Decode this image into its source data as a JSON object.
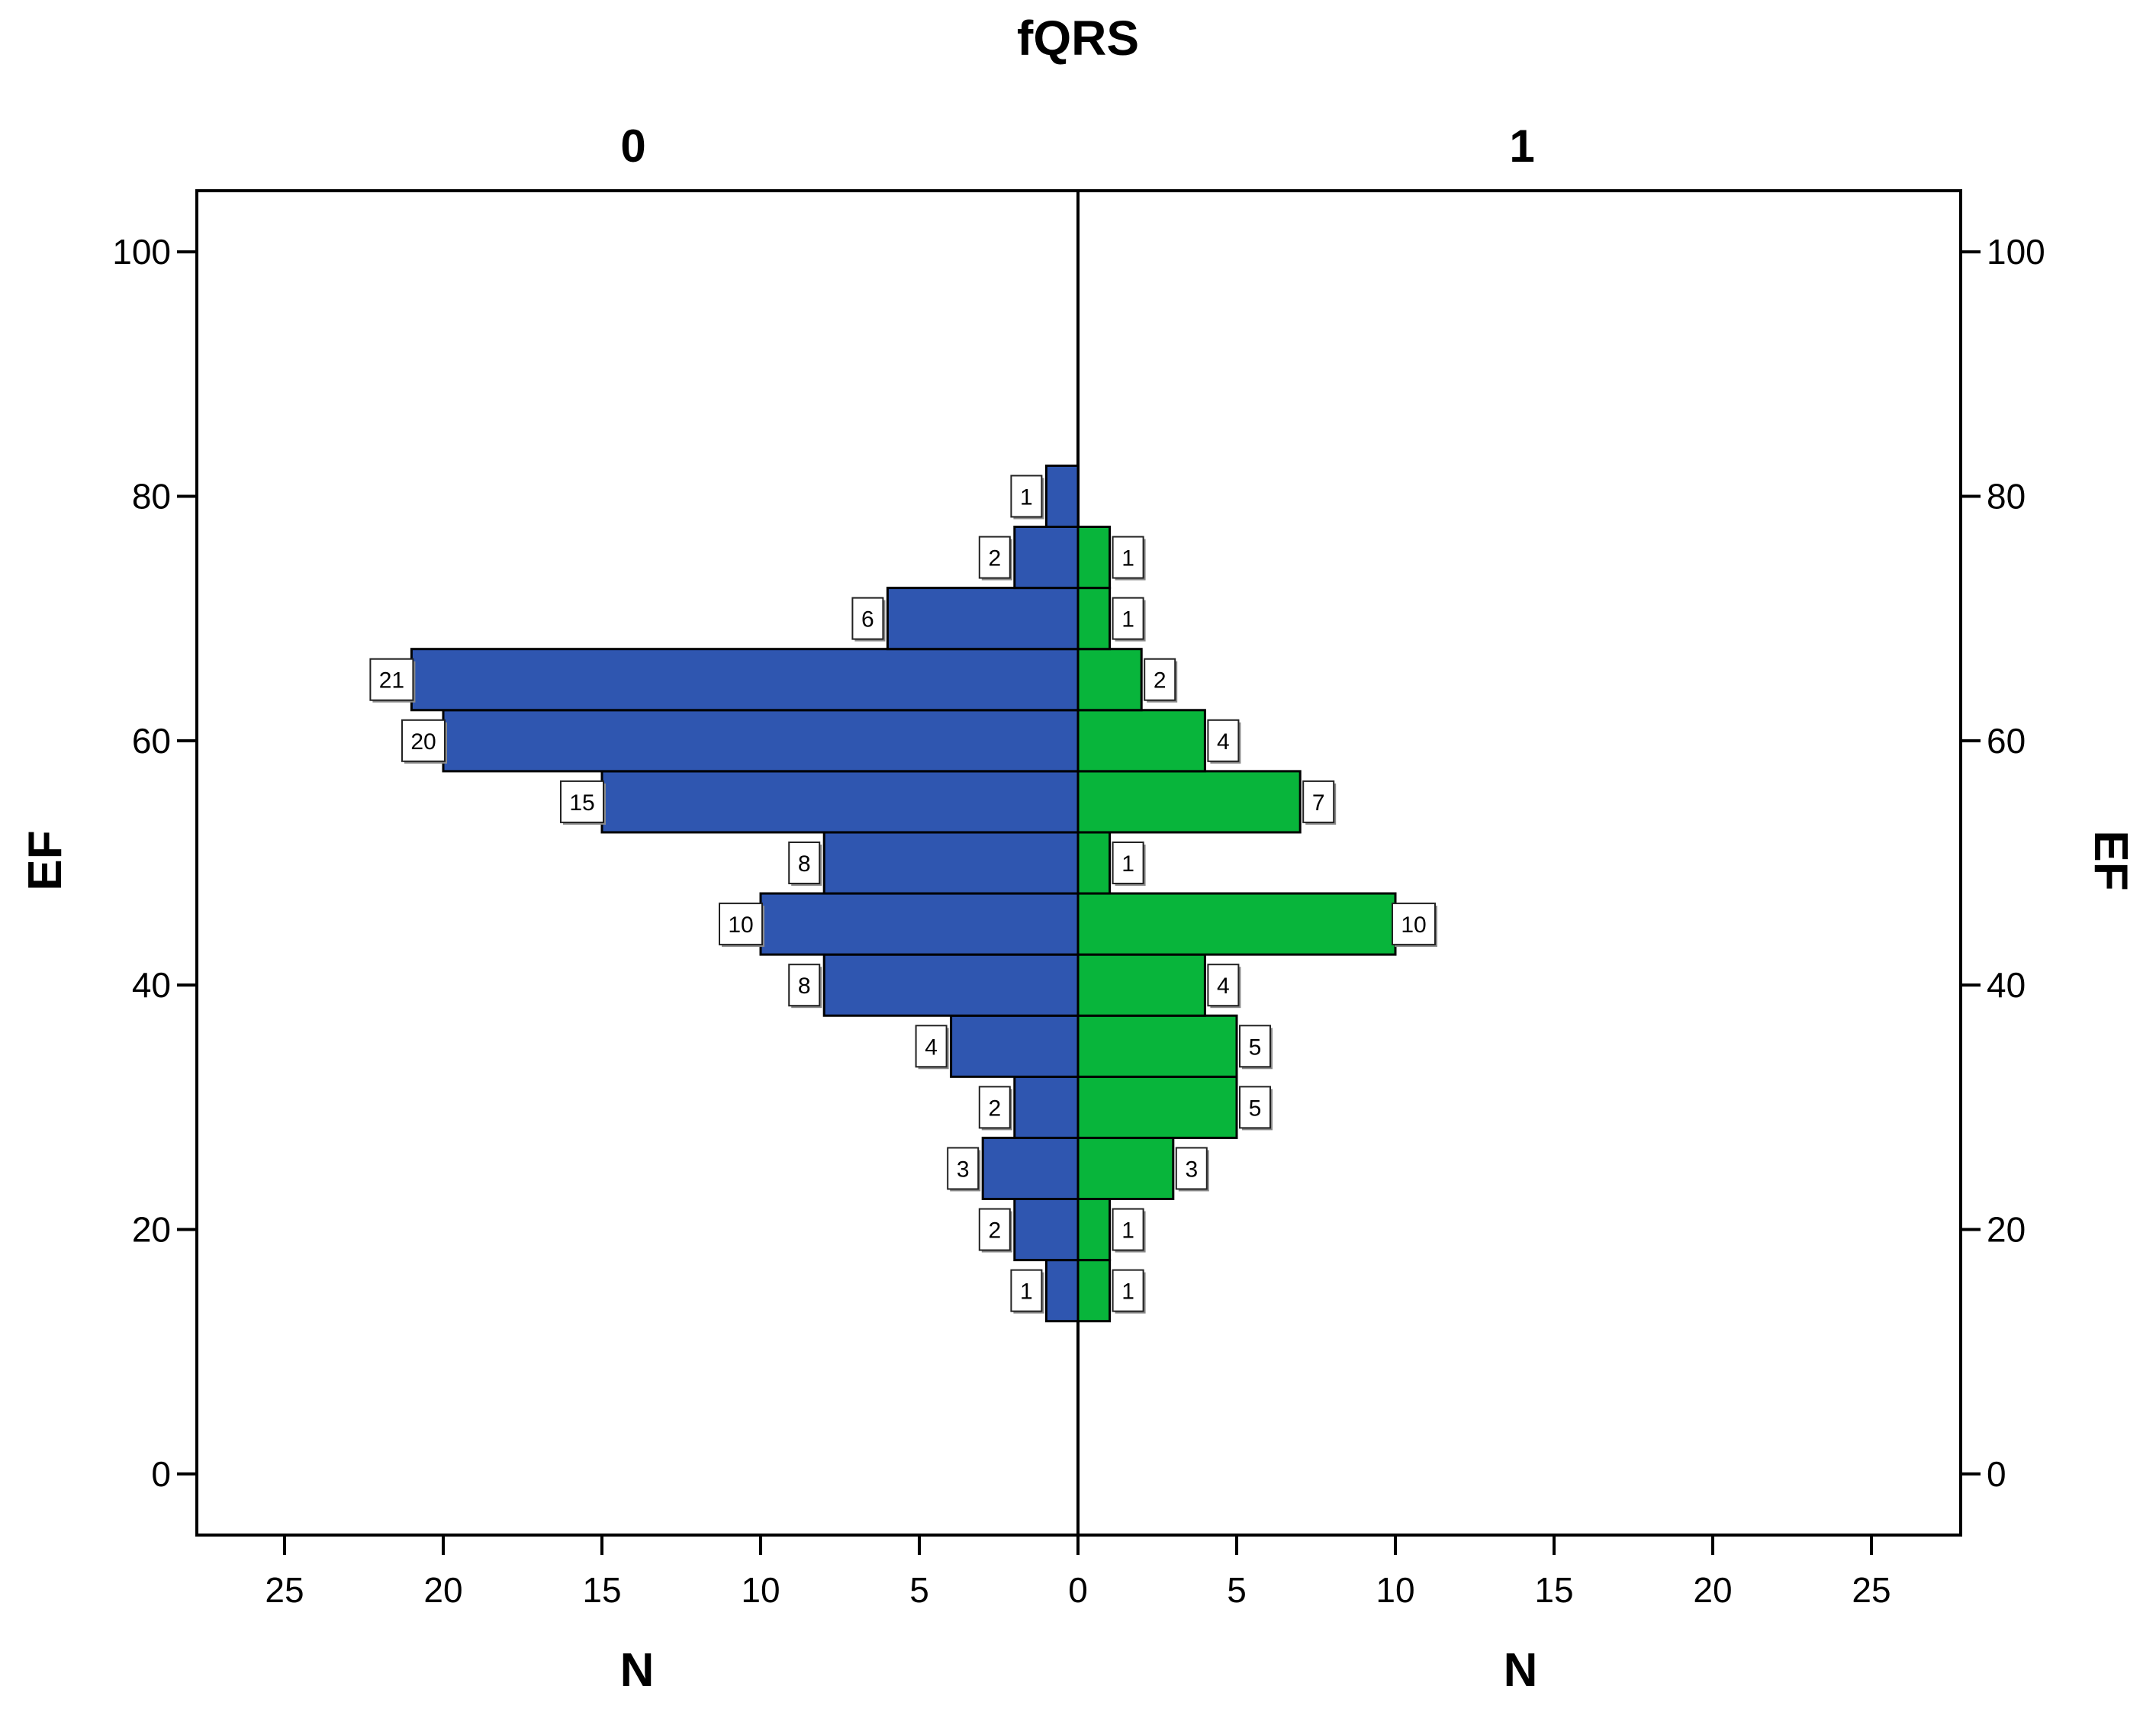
{
  "chart_data": {
    "type": "bar",
    "orientation": "horizontal",
    "layout": "population-pyramid",
    "title": "fQRS",
    "panel_labels": [
      "0",
      "1"
    ],
    "ylabel": "EF",
    "xlabel": "N",
    "ylim": [
      -5,
      105
    ],
    "y_ticks": [
      "0",
      "20",
      "40",
      "60",
      "80",
      "100"
    ],
    "xlim": [
      0,
      28
    ],
    "x_ticks": [
      "25",
      "20",
      "15",
      "10",
      "5",
      "0",
      "5",
      "10",
      "15",
      "20",
      "25"
    ],
    "bins": [
      {
        "from": 12.5,
        "to": 17.5
      },
      {
        "from": 17.5,
        "to": 22.5
      },
      {
        "from": 22.5,
        "to": 27.5
      },
      {
        "from": 27.5,
        "to": 32.5
      },
      {
        "from": 32.5,
        "to": 37.5
      },
      {
        "from": 37.5,
        "to": 42.5
      },
      {
        "from": 42.5,
        "to": 47.5
      },
      {
        "from": 47.5,
        "to": 52.5
      },
      {
        "from": 52.5,
        "to": 57.5
      },
      {
        "from": 57.5,
        "to": 62.5
      },
      {
        "from": 62.5,
        "to": 67.5
      },
      {
        "from": 67.5,
        "to": 72.5
      },
      {
        "from": 72.5,
        "to": 77.5
      },
      {
        "from": 77.5,
        "to": 82.5
      }
    ],
    "series": [
      {
        "side": "left",
        "color": "#2f56b0",
        "values": [
          1,
          2,
          3,
          2,
          4,
          8,
          10,
          8,
          15,
          20,
          21,
          6,
          2,
          1
        ]
      },
      {
        "side": "right",
        "color": "#08b53b",
        "values": [
          1,
          1,
          3,
          5,
          5,
          4,
          10,
          1,
          7,
          4,
          2,
          1,
          1,
          0
        ]
      }
    ],
    "grid": false,
    "legend": "none"
  }
}
